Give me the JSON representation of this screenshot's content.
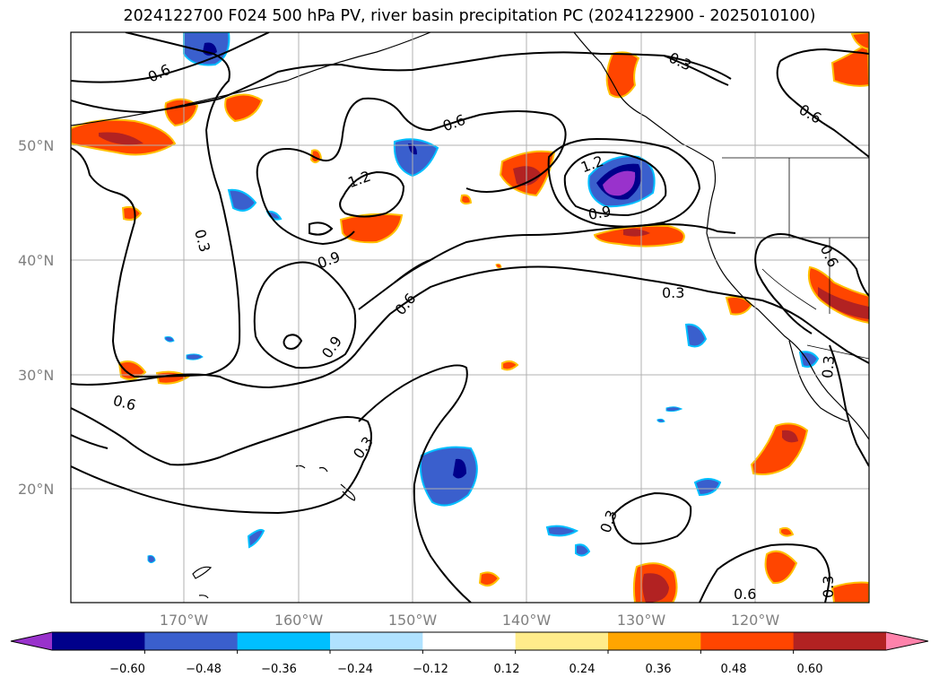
{
  "title": "2024122700 F024 500 hPa PV, river basin precipitation PC (2024122900 - 2025010100)",
  "lat_labels": [
    "50°N",
    "40°N",
    "30°N",
    "20°N"
  ],
  "lon_labels": [
    "170°W",
    "160°W",
    "150°W",
    "140°W",
    "130°W",
    "120°W"
  ],
  "contour_labels": [
    "0.6",
    "0.3",
    "0.6",
    "0.6",
    "1.2",
    "1.2",
    "0.9",
    "0.3",
    "0.9",
    "0.6",
    "0.3",
    "0.9",
    "0.6",
    "0.3",
    "0.3",
    "0.6",
    "0.3",
    "0.6",
    "0.3"
  ],
  "colorbar": {
    "tick_labels": [
      "−0.60",
      "−0.48",
      "−0.36",
      "−0.24",
      "−0.12",
      "0.12",
      "0.24",
      "0.36",
      "0.48",
      "0.60"
    ],
    "colors": [
      "#9932cc",
      "#00008b",
      "#3a5fcd",
      "#00bfff",
      "#b0e2ff",
      "#ffffff",
      "#ffec8b",
      "#ffa500",
      "#ff4500",
      "#b22222",
      "#ff82ab"
    ]
  },
  "map": {
    "lat_range": [
      10,
      60
    ],
    "lon_range": [
      -180,
      -110
    ],
    "contour_color": "#000000",
    "grid_color": "#b0b0b0"
  }
}
